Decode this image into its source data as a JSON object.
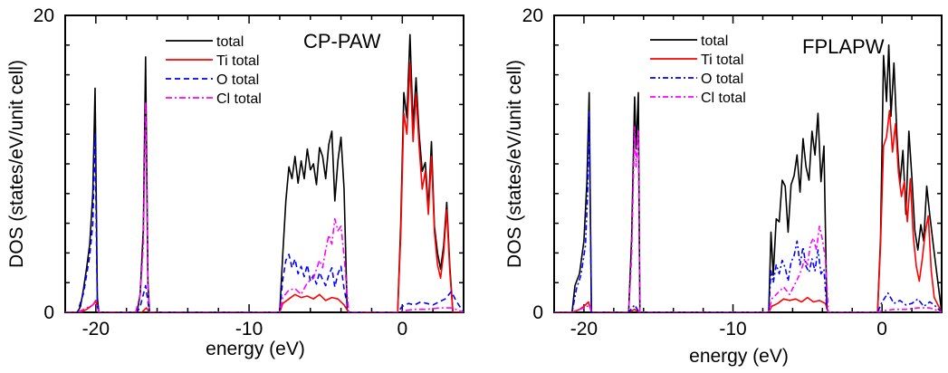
{
  "chart_data": [
    {
      "type": "line",
      "panel": "left",
      "annotation": "CP-PAW",
      "xlabel": "energy (eV)",
      "ylabel": "DOS (states/eV/unit cell)",
      "xlim": [
        -22,
        4
      ],
      "ylim": [
        0,
        20
      ],
      "xticks": [
        {
          "value": -20,
          "label": "-20"
        },
        {
          "value": -10,
          "label": "-10"
        },
        {
          "value": 0,
          "label": "0"
        }
      ],
      "yticks": [
        {
          "value": 0,
          "label": "0"
        },
        {
          "value": 20,
          "label": "20"
        }
      ],
      "grid": false,
      "legend_position": "top-center",
      "series": [
        {
          "name": "total",
          "color": "#000000",
          "dash": "solid",
          "x": [
            -21.2,
            -21.0,
            -20.8,
            -20.6,
            -20.4,
            -20.2,
            -20.05,
            -19.9,
            -19.8,
            -17.3,
            -17.1,
            -16.9,
            -16.75,
            -16.6,
            -16.5,
            -8.0,
            -7.8,
            -7.6,
            -7.4,
            -7.2,
            -7.0,
            -6.8,
            -6.6,
            -6.4,
            -6.2,
            -6.0,
            -5.8,
            -5.6,
            -5.4,
            -5.2,
            -5.0,
            -4.8,
            -4.6,
            -4.4,
            -4.2,
            -4.0,
            -3.8,
            -3.6,
            -3.5,
            -0.3,
            -0.1,
            0.1,
            0.3,
            0.5,
            0.7,
            0.9,
            1.1,
            1.3,
            1.5,
            1.7,
            1.9,
            2.1,
            2.3,
            2.5,
            2.7,
            2.9,
            3.1,
            3.3
          ],
          "y": [
            0,
            0.4,
            1.6,
            3.0,
            4.6,
            8.0,
            15.1,
            1.0,
            0,
            0,
            1.3,
            5.6,
            17.2,
            2.0,
            0,
            0,
            3.9,
            7.5,
            9.8,
            9.0,
            10.5,
            8.7,
            10.2,
            9.0,
            11.0,
            9.6,
            10.0,
            8.6,
            11.1,
            10.5,
            9.0,
            11.3,
            12.2,
            7.5,
            10.2,
            11.8,
            8.3,
            0.2,
            0,
            0,
            6.0,
            14.8,
            13.1,
            18.7,
            12.5,
            15.8,
            12.0,
            9.5,
            10.1,
            7.0,
            11.5,
            5.8,
            4.0,
            2.9,
            4.5,
            7.4,
            3.1,
            0
          ]
        },
        {
          "name": "Ti total",
          "color": "#ff0000",
          "dash": "solid",
          "x": [
            -21.0,
            -20.6,
            -20.2,
            -20.0,
            -19.8,
            -17.0,
            -16.7,
            -16.5,
            -8.0,
            -7.8,
            -7.4,
            -7.0,
            -6.6,
            -6.2,
            -5.8,
            -5.4,
            -5.0,
            -4.6,
            -4.2,
            -3.8,
            -3.5,
            -0.3,
            -0.1,
            0.1,
            0.3,
            0.5,
            0.7,
            0.9,
            1.1,
            1.3,
            1.5,
            1.7,
            1.9,
            2.1,
            2.3,
            2.5,
            2.7,
            2.9,
            3.1,
            3.3
          ],
          "y": [
            0,
            0.2,
            0.5,
            0.8,
            0,
            0,
            0.3,
            0,
            0,
            0.6,
            0.9,
            1.2,
            1.0,
            1.1,
            0.9,
            1.2,
            0.8,
            1.0,
            0.9,
            0.5,
            0,
            0,
            5.2,
            13.4,
            12.0,
            16.8,
            11.5,
            14.7,
            11.2,
            8.3,
            9.5,
            6.6,
            10.5,
            5.4,
            3.2,
            2.3,
            4.0,
            6.9,
            2.7,
            0
          ]
        },
        {
          "name": "O  total",
          "color": "#0000ff",
          "dash": "6 4",
          "x": [
            -21.2,
            -20.8,
            -20.4,
            -20.2,
            -20.05,
            -19.9,
            -19.8,
            -17.3,
            -17.1,
            -16.75,
            -16.5,
            -8.0,
            -7.8,
            -7.6,
            -7.4,
            -7.2,
            -7.0,
            -6.8,
            -6.6,
            -6.4,
            -6.2,
            -6.0,
            -5.8,
            -5.6,
            -5.4,
            -5.2,
            -5.0,
            -4.8,
            -4.6,
            -4.4,
            -4.2,
            -4.0,
            -3.8,
            -3.5,
            -0.3,
            0.0,
            0.4,
            0.8,
            1.2,
            1.6,
            2.0,
            2.4,
            2.8,
            3.2,
            3.5
          ],
          "y": [
            0,
            1.3,
            3.8,
            6.0,
            12.0,
            0.5,
            0,
            0,
            0.4,
            1.8,
            0,
            0,
            2.2,
            3.5,
            3.9,
            3.0,
            3.6,
            2.6,
            3.1,
            2.4,
            3.2,
            2.1,
            2.5,
            1.9,
            2.7,
            2.2,
            1.8,
            2.5,
            3.0,
            1.7,
            2.6,
            3.1,
            1.6,
            0,
            0,
            0.4,
            0.6,
            0.5,
            0.7,
            0.6,
            0.5,
            0.7,
            0.9,
            1.4,
            0.8
          ]
        },
        {
          "name": "Cl total",
          "color": "#ff00ff",
          "dash": "7 3 2 3",
          "x": [
            -21.2,
            -20.6,
            -20.2,
            -20.0,
            -19.8,
            -17.4,
            -17.1,
            -16.9,
            -16.75,
            -16.6,
            -16.5,
            -8.0,
            -7.8,
            -7.4,
            -7.0,
            -6.6,
            -6.2,
            -5.8,
            -5.6,
            -5.4,
            -5.2,
            -5.0,
            -4.8,
            -4.6,
            -4.4,
            -4.2,
            -4.0,
            -3.8,
            -3.5,
            -0.3,
            0.0,
            0.8,
            1.6,
            2.4,
            3.2,
            3.5
          ],
          "y": [
            0,
            0.3,
            0.5,
            0.7,
            0,
            0,
            1.2,
            4.5,
            14.2,
            1.5,
            0,
            0,
            1.0,
            1.5,
            1.6,
            1.2,
            2.0,
            2.3,
            2.9,
            3.5,
            3.0,
            4.2,
            5.2,
            4.6,
            6.3,
            5.5,
            5.8,
            3.8,
            0,
            0,
            0.1,
            0.2,
            0.2,
            0.3,
            0.3,
            0.2
          ]
        }
      ]
    },
    {
      "type": "line",
      "panel": "right",
      "annotation": "FPLAPW",
      "xlabel": "energy (eV)",
      "ylabel": "DOS (states/eV/unit cell)",
      "xlim": [
        -22,
        4
      ],
      "ylim": [
        0,
        20
      ],
      "xticks": [
        {
          "value": -20,
          "label": "-20"
        },
        {
          "value": -10,
          "label": "-10"
        },
        {
          "value": 0,
          "label": "0"
        }
      ],
      "yticks": [
        {
          "value": 0,
          "label": "0"
        },
        {
          "value": 20,
          "label": "20"
        }
      ],
      "grid": false,
      "legend_position": "top-center",
      "series": [
        {
          "name": "total",
          "color": "#000000",
          "dash": "solid",
          "x": [
            -20.8,
            -20.6,
            -20.3,
            -20.0,
            -19.8,
            -19.65,
            -19.5,
            -17.0,
            -16.8,
            -16.6,
            -16.5,
            -16.35,
            -16.25,
            -7.6,
            -7.45,
            -7.3,
            -7.1,
            -6.9,
            -6.7,
            -6.5,
            -6.3,
            -6.1,
            -5.9,
            -5.7,
            -5.5,
            -5.3,
            -5.1,
            -4.9,
            -4.7,
            -4.5,
            -4.3,
            -4.1,
            -3.9,
            -3.7,
            -3.6,
            -0.3,
            -0.1,
            0.1,
            0.3,
            0.45,
            0.6,
            0.8,
            1.0,
            1.2,
            1.4,
            1.6,
            1.8,
            2.0,
            2.2,
            2.4,
            2.6,
            2.8,
            3.0,
            3.2,
            3.5
          ],
          "y": [
            0,
            1.8,
            2.6,
            4.8,
            8.8,
            14.8,
            0,
            0,
            5.0,
            14.5,
            11.0,
            14.8,
            0,
            0,
            5.4,
            2.5,
            6.3,
            6.1,
            8.9,
            8.5,
            5.4,
            8.6,
            9.2,
            10.6,
            8.1,
            11.7,
            9.8,
            8.9,
            12.2,
            10.6,
            13.4,
            8.8,
            11.2,
            0.3,
            0,
            0,
            5.0,
            17.3,
            14.2,
            18.0,
            13.2,
            16.8,
            11.9,
            8.6,
            10.9,
            6.6,
            12.2,
            9.1,
            5.5,
            4.2,
            5.9,
            4.8,
            8.5,
            6.6,
            4.0
          ]
        },
        {
          "name": "Ti total",
          "color": "#ff0000",
          "dash": "solid",
          "x": [
            -20.8,
            -20.3,
            -20.0,
            -19.7,
            -19.5,
            -17.0,
            -16.6,
            -16.3,
            -7.6,
            -7.4,
            -7.0,
            -6.6,
            -6.2,
            -5.8,
            -5.4,
            -5.0,
            -4.6,
            -4.2,
            -3.8,
            -3.6,
            -0.3,
            -0.1,
            0.1,
            0.3,
            0.5,
            0.7,
            0.9,
            1.1,
            1.3,
            1.5,
            1.7,
            1.9,
            2.1,
            2.3,
            2.5,
            2.7,
            2.9,
            3.1,
            3.3,
            3.5
          ],
          "y": [
            0,
            0.2,
            0.4,
            0.7,
            0,
            0,
            0.2,
            0,
            0,
            0.4,
            0.6,
            0.9,
            0.8,
            0.9,
            0.7,
            1.0,
            0.7,
            0.8,
            0.6,
            0,
            0,
            4.5,
            11.2,
            11.8,
            13.6,
            10.8,
            12.7,
            9.4,
            7.8,
            8.8,
            6.1,
            9.0,
            5.1,
            3.1,
            2.1,
            3.6,
            5.4,
            6.5,
            2.8,
            1.0
          ]
        },
        {
          "name": "O  total",
          "color": "#0000ff",
          "dash": "6 3 2 3",
          "x": [
            -20.8,
            -20.5,
            -20.2,
            -19.9,
            -19.75,
            -19.65,
            -19.5,
            -17.0,
            -16.6,
            -16.3,
            -7.6,
            -7.45,
            -7.3,
            -7.1,
            -6.9,
            -6.7,
            -6.5,
            -6.3,
            -6.1,
            -5.9,
            -5.7,
            -5.5,
            -5.3,
            -5.1,
            -4.9,
            -4.7,
            -4.5,
            -4.3,
            -4.1,
            -3.9,
            -3.7,
            -3.6,
            -0.3,
            0.0,
            0.4,
            0.8,
            1.2,
            1.6,
            2.0,
            2.4,
            2.8,
            3.2,
            3.5
          ],
          "y": [
            0,
            1.6,
            2.5,
            4.5,
            8.0,
            13.5,
            0,
            0,
            0.5,
            0,
            0,
            2.8,
            2.0,
            3.2,
            2.6,
            3.5,
            3.0,
            2.1,
            3.4,
            3.8,
            4.8,
            3.2,
            4.4,
            3.1,
            2.7,
            3.6,
            2.8,
            4.2,
            2.6,
            2.9,
            0.2,
            0,
            0,
            0.7,
            1.3,
            0.6,
            0.8,
            0.5,
            0.6,
            0.9,
            0.4,
            0.7,
            0.5
          ]
        },
        {
          "name": "Cl total",
          "color": "#ff00ff",
          "dash": "6 3 2 3",
          "x": [
            -20.8,
            -20.0,
            -19.6,
            -19.5,
            -17.0,
            -16.8,
            -16.6,
            -16.5,
            -16.35,
            -16.25,
            -7.6,
            -7.4,
            -7.0,
            -6.6,
            -6.2,
            -5.8,
            -5.6,
            -5.4,
            -5.2,
            -5.0,
            -4.8,
            -4.6,
            -4.4,
            -4.2,
            -4.0,
            -3.8,
            -3.6,
            -0.3,
            0.0,
            0.8,
            1.6,
            2.4,
            3.2,
            3.5
          ],
          "y": [
            0,
            0.3,
            0.5,
            0,
            0,
            3.8,
            12.5,
            9.8,
            12.2,
            0,
            0,
            0.9,
            1.3,
            1.7,
            1.2,
            2.0,
            2.4,
            2.9,
            3.6,
            3.2,
            4.6,
            5.0,
            4.2,
            5.8,
            4.9,
            3.6,
            0,
            0,
            0.1,
            0.2,
            0.2,
            0.3,
            0.3,
            0.2
          ]
        }
      ]
    }
  ]
}
